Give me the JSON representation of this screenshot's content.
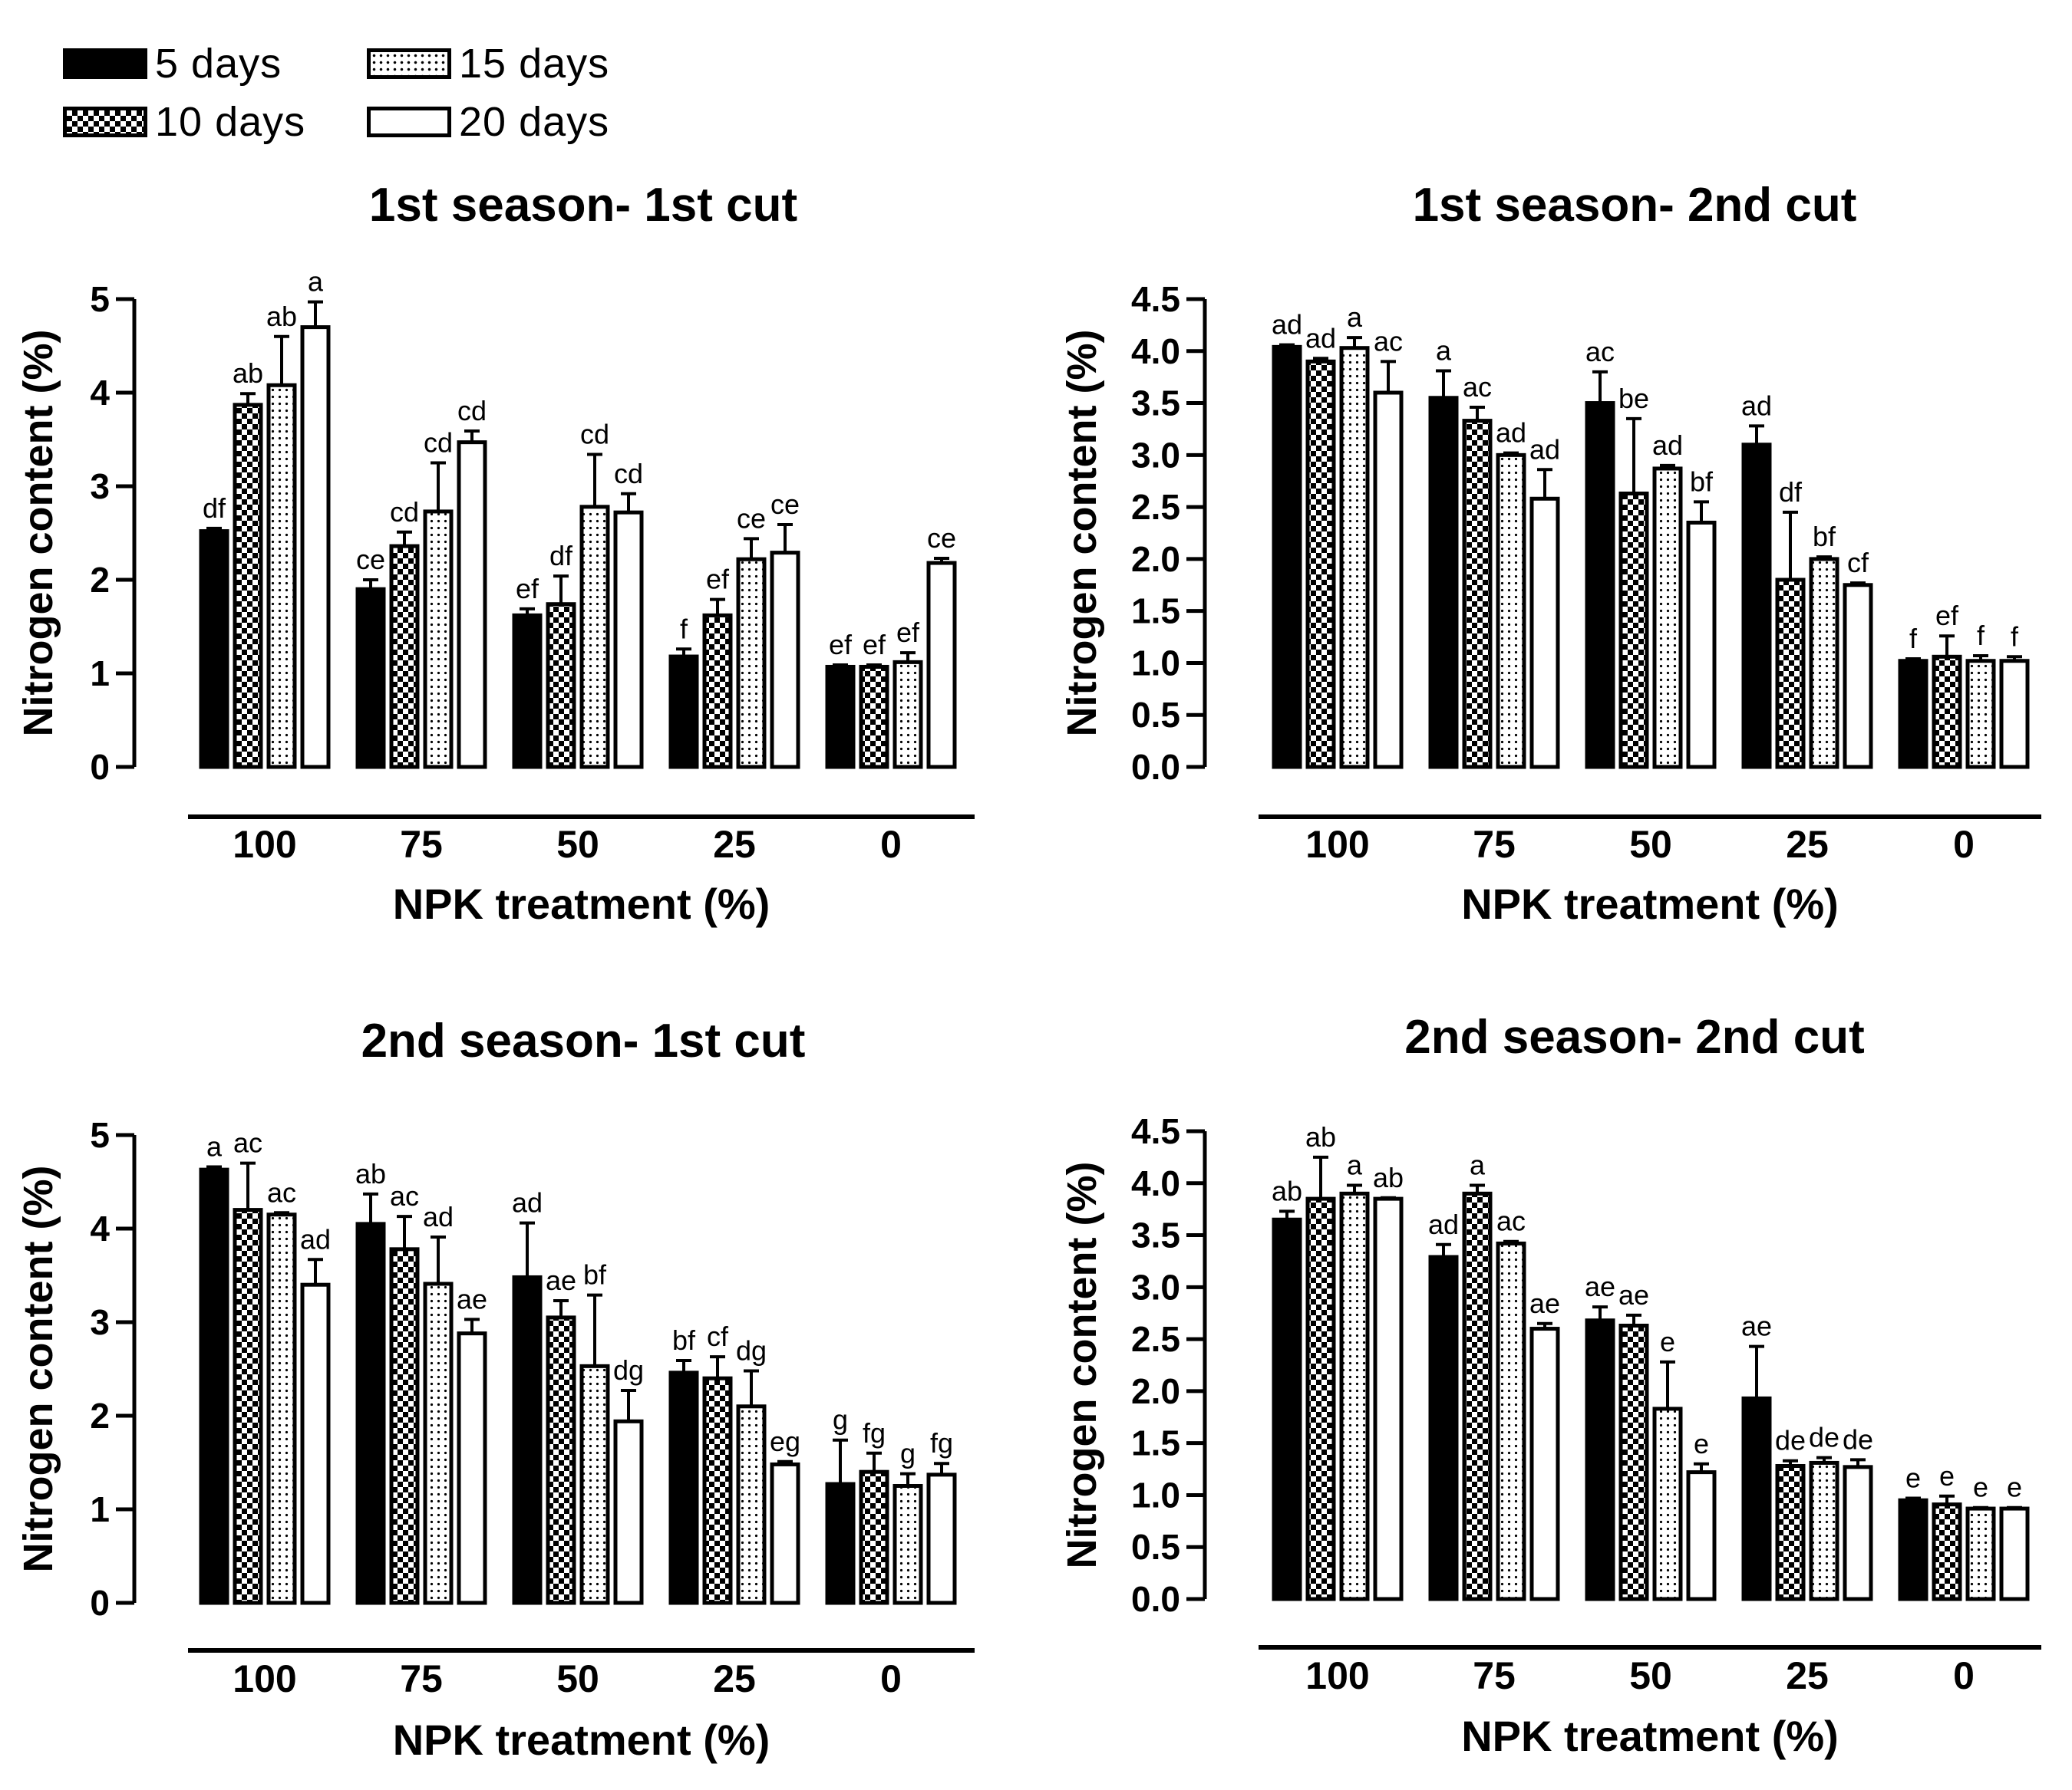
{
  "legend": {
    "items": [
      {
        "label": "5 days",
        "pattern": "solid"
      },
      {
        "label": "15 days",
        "pattern": "dots"
      },
      {
        "label": "10 days",
        "pattern": "check"
      },
      {
        "label": "20 days",
        "pattern": "open"
      }
    ]
  },
  "colors": {
    "ink": "#000000",
    "background": "#ffffff"
  },
  "chart_data": [
    {
      "type": "bar",
      "title": "1st season- 1st cut",
      "xlabel": "NPK treatment (%)",
      "ylabel": "Nitrogen content (%)",
      "ylim": [
        0,
        5
      ],
      "yticks": [
        "0",
        "1",
        "2",
        "3",
        "4",
        "5"
      ],
      "categories": [
        "100",
        "75",
        "50",
        "25",
        "0"
      ],
      "series": [
        {
          "name": "5 days",
          "values": [
            2.52,
            1.9,
            1.62,
            1.18,
            1.07
          ],
          "errors": [
            0.03,
            0.1,
            0.07,
            0.08,
            0.02
          ],
          "letters": [
            "df",
            "ce",
            "ef",
            "f",
            "ef"
          ]
        },
        {
          "name": "10 days",
          "values": [
            3.87,
            2.36,
            1.74,
            1.62,
            1.07
          ],
          "errors": [
            0.12,
            0.15,
            0.3,
            0.17,
            0.02
          ],
          "letters": [
            "ab",
            "cd",
            "df",
            "ef",
            "ef"
          ]
        },
        {
          "name": "15 days",
          "values": [
            4.08,
            2.73,
            2.78,
            2.22,
            1.12
          ],
          "errors": [
            0.52,
            0.52,
            0.56,
            0.22,
            0.1
          ],
          "letters": [
            "ab",
            "cd",
            "cd",
            "ce",
            "ef"
          ]
        },
        {
          "name": "20 days",
          "values": [
            4.7,
            3.47,
            2.72,
            2.29,
            2.18
          ],
          "errors": [
            0.27,
            0.12,
            0.2,
            0.3,
            0.05
          ],
          "letters": [
            "a",
            "cd",
            "cd",
            "ce",
            "ce"
          ]
        }
      ]
    },
    {
      "type": "bar",
      "title": "1st season- 2nd cut",
      "xlabel": "NPK treatment (%)",
      "ylabel": "Nitrogen content (%)",
      "ylim": [
        0,
        4.5
      ],
      "yticks": [
        "0.0",
        "0.5",
        "1.0",
        "1.5",
        "2.0",
        "2.5",
        "3.0",
        "3.5",
        "4.0",
        "4.5"
      ],
      "categories": [
        "100",
        "75",
        "50",
        "25",
        "0"
      ],
      "series": [
        {
          "name": "5 days",
          "values": [
            4.04,
            3.55,
            3.5,
            3.1,
            1.02
          ],
          "errors": [
            0.02,
            0.26,
            0.3,
            0.18,
            0.02
          ],
          "letters": [
            "ad",
            "a",
            "ac",
            "ad",
            "f"
          ]
        },
        {
          "name": "10 days",
          "values": [
            3.9,
            3.33,
            2.63,
            1.8,
            1.06
          ],
          "errors": [
            0.03,
            0.13,
            0.72,
            0.65,
            0.2
          ],
          "letters": [
            "ad",
            "ac",
            "be",
            "df",
            "ef"
          ]
        },
        {
          "name": "15 days",
          "values": [
            4.03,
            3.0,
            2.87,
            2.0,
            1.02
          ],
          "errors": [
            0.1,
            0.02,
            0.03,
            0.02,
            0.05
          ],
          "letters": [
            "a",
            "ad",
            "ad",
            "bf",
            "f"
          ]
        },
        {
          "name": "20 days",
          "values": [
            3.6,
            2.58,
            2.35,
            1.75,
            1.02
          ],
          "errors": [
            0.3,
            0.28,
            0.2,
            0.02,
            0.04
          ],
          "letters": [
            "ac",
            "ad",
            "bf",
            "cf",
            "f"
          ]
        }
      ]
    },
    {
      "type": "bar",
      "title": "2nd season- 1st cut",
      "xlabel": "NPK treatment (%)",
      "ylabel": "Nitrogen content (%)",
      "ylim": [
        0,
        5
      ],
      "yticks": [
        "0",
        "1",
        "2",
        "3",
        "4",
        "5"
      ],
      "categories": [
        "100",
        "75",
        "50",
        "25",
        "0"
      ],
      "series": [
        {
          "name": "5 days",
          "values": [
            4.63,
            4.05,
            3.48,
            2.46,
            1.27
          ],
          "errors": [
            0.03,
            0.32,
            0.58,
            0.13,
            0.47
          ],
          "letters": [
            "a",
            "ab",
            "ad",
            "bf",
            "g"
          ]
        },
        {
          "name": "10 days",
          "values": [
            4.2,
            3.78,
            3.05,
            2.4,
            1.4
          ],
          "errors": [
            0.5,
            0.35,
            0.18,
            0.23,
            0.2
          ],
          "letters": [
            "ac",
            "ac",
            "ae",
            "cf",
            "fg"
          ]
        },
        {
          "name": "15 days",
          "values": [
            4.15,
            3.41,
            2.53,
            2.1,
            1.25
          ],
          "errors": [
            0.02,
            0.5,
            0.76,
            0.38,
            0.13
          ],
          "letters": [
            "ac",
            "ad",
            "bf",
            "dg",
            "g"
          ]
        },
        {
          "name": "20 days",
          "values": [
            3.4,
            2.88,
            1.94,
            1.48,
            1.37
          ],
          "errors": [
            0.27,
            0.15,
            0.33,
            0.03,
            0.12
          ],
          "letters": [
            "ad",
            "ae",
            "dg",
            "eg",
            "fg"
          ]
        }
      ]
    },
    {
      "type": "bar",
      "title": "2nd season- 2nd cut",
      "xlabel": "NPK treatment (%)",
      "ylabel": "Nitrogen content (%)",
      "ylim": [
        0,
        4.5
      ],
      "yticks": [
        "0.0",
        "0.5",
        "1.0",
        "1.5",
        "2.0",
        "2.5",
        "3.0",
        "3.5",
        "4.0",
        "4.5"
      ],
      "categories": [
        "100",
        "75",
        "50",
        "25",
        "0"
      ],
      "series": [
        {
          "name": "5 days",
          "values": [
            3.65,
            3.29,
            2.68,
            1.93,
            0.95
          ],
          "errors": [
            0.08,
            0.12,
            0.13,
            0.5,
            0.02
          ],
          "letters": [
            "ab",
            "ad",
            "ae",
            "ae",
            "e"
          ]
        },
        {
          "name": "10 days",
          "values": [
            3.85,
            3.9,
            2.63,
            1.28,
            0.91
          ],
          "errors": [
            0.4,
            0.08,
            0.1,
            0.05,
            0.08
          ],
          "letters": [
            "ab",
            "a",
            "ae",
            "de",
            "e"
          ]
        },
        {
          "name": "15 days",
          "values": [
            3.9,
            3.42,
            1.83,
            1.31,
            0.87
          ],
          "errors": [
            0.08,
            0.02,
            0.45,
            0.05,
            0.01
          ],
          "letters": [
            "a",
            "ac",
            "e",
            "de",
            "e"
          ]
        },
        {
          "name": "20 days",
          "values": [
            3.85,
            2.6,
            1.22,
            1.27,
            0.87
          ],
          "errors": [
            0.01,
            0.05,
            0.08,
            0.07,
            0.01
          ],
          "letters": [
            "ab",
            "ae",
            "e",
            "de",
            "e"
          ]
        }
      ]
    }
  ]
}
